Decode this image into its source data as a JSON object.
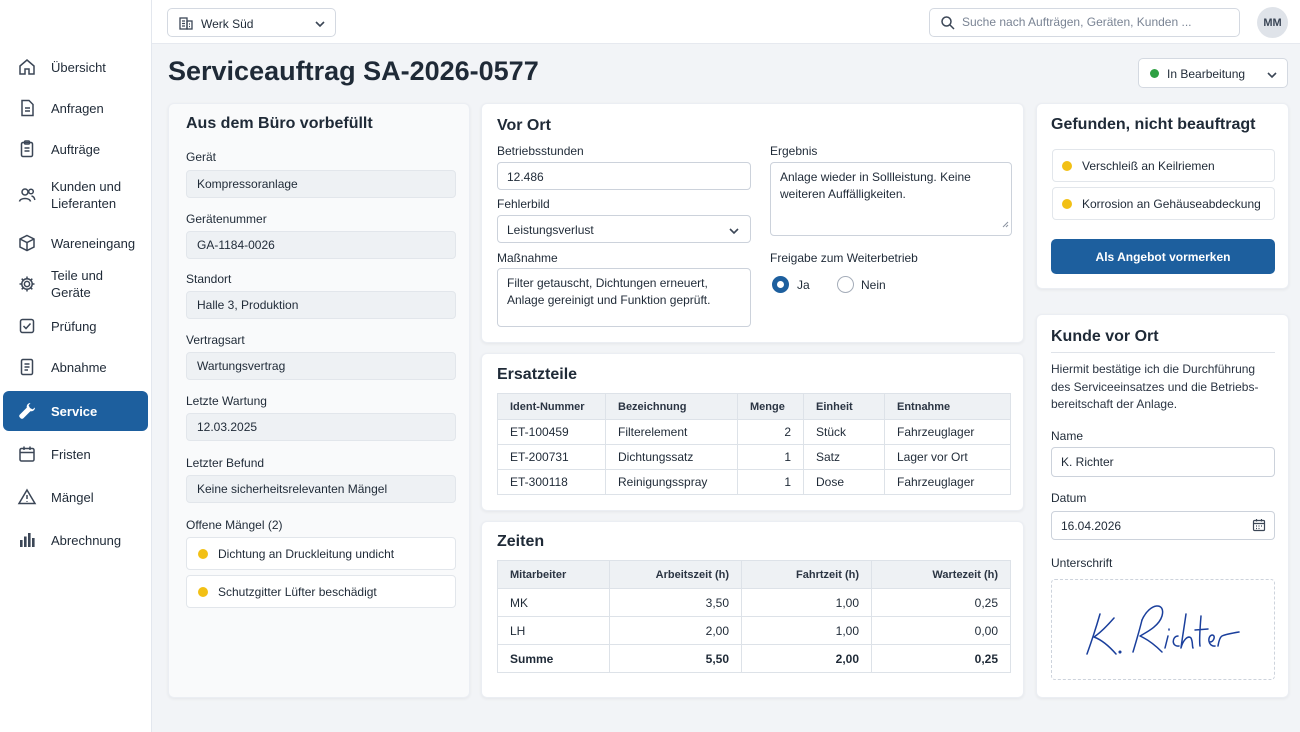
{
  "nav": {
    "items": [
      {
        "label": "Übersicht",
        "icon": "home-icon"
      },
      {
        "label": "Anfragen",
        "icon": "document-icon"
      },
      {
        "label": "Aufträge",
        "icon": "clipboard-icon"
      },
      {
        "label": "Kunden und Lieferanten",
        "icon": "users-icon"
      },
      {
        "label": "Wareneingang",
        "icon": "box-icon"
      },
      {
        "label": "Teile und Geräte",
        "icon": "gear-icon"
      },
      {
        "label": "Prüfung",
        "icon": "checkbox-icon"
      },
      {
        "label": "Abnahme",
        "icon": "document-list-icon"
      },
      {
        "label": "Service",
        "icon": "wrench-icon",
        "active": true
      },
      {
        "label": "Fristen",
        "icon": "calendar-icon"
      },
      {
        "label": "Mängel",
        "icon": "warning-icon"
      },
      {
        "label": "Abrechnung",
        "icon": "bar-chart-icon"
      }
    ]
  },
  "topbar": {
    "site": "Werk Süd",
    "search_placeholder": "Suche nach Aufträgen, Geräten, Kunden ...",
    "avatar": "MM"
  },
  "page": {
    "title": "Serviceauftrag SA-2026-0577",
    "status": "In Bearbeitung",
    "status_color": "#2ea043"
  },
  "office": {
    "title": "Aus dem Büro vorbefüllt",
    "fields": [
      {
        "label": "Gerät",
        "value": "Kompressoranlage"
      },
      {
        "label": "Gerätenummer",
        "value": "GA-1184-0026"
      },
      {
        "label": "Standort",
        "value": "Halle 3, Produktion"
      },
      {
        "label": "Vertragsart",
        "value": "Wartungsvertrag"
      },
      {
        "label": "Letzte Wartung",
        "value": "12.03.2025"
      },
      {
        "label": "Letzter Befund",
        "value": "Keine sicherheitsrelevanten Mängel"
      }
    ],
    "open_defects_label": "Offene Mängel (2)",
    "open_defects": [
      "Dichtung an Druckleitung undicht",
      "Schutzgitter Lüfter beschädigt"
    ]
  },
  "onsite": {
    "title": "Vor Ort",
    "hours_label": "Betriebsstunden",
    "hours_value": "12.486",
    "fault_label": "Fehlerbild",
    "fault_value": "Leistungsverlust",
    "measure_label": "Maßnahme",
    "measure_value": "Filter getauscht, Dichtungen erneuert, Anlage gereinigt und Funktion geprüft.",
    "result_label": "Ergebnis",
    "result_value": "Anlage wieder in Sollleistung. Keine weiteren Auffälligkeiten.",
    "release_label": "Freigabe zum Weiterbetrieb",
    "release_yes": "Ja",
    "release_no": "Nein"
  },
  "parts": {
    "title": "Ersatzteile",
    "headers": [
      "Ident-Nummer",
      "Bezeichnung",
      "Menge",
      "Einheit",
      "Entnahme"
    ],
    "rows": [
      [
        "ET-100459",
        "Filterelement",
        "2",
        "Stück",
        "Fahrzeuglager"
      ],
      [
        "ET-200731",
        "Dichtungssatz",
        "1",
        "Satz",
        "Lager vor Ort"
      ],
      [
        "ET-300118",
        "Reinigungsspray",
        "1",
        "Dose",
        "Fahrzeuglager"
      ]
    ]
  },
  "times": {
    "title": "Zeiten",
    "headers": [
      "Mitarbeiter",
      "Arbeitszeit (h)",
      "Fahrtzeit (h)",
      "Wartezeit (h)"
    ],
    "rows": [
      [
        "MK",
        "3,50",
        "1,00",
        "0,25"
      ],
      [
        "LH",
        "2,00",
        "1,00",
        "0,00"
      ]
    ],
    "sum": [
      "Summe",
      "5,50",
      "2,00",
      "0,25"
    ]
  },
  "found": {
    "title": "Gefunden, nicht beauftragt",
    "items": [
      "Verschleiß an Keilriemen",
      "Korrosion an Gehäuseabdeckung"
    ],
    "button": "Als Angebot vormerken"
  },
  "customer": {
    "title": "Kunde vor Ort",
    "confirmation": "Hiermit bestätige ich die Durchführung des Serviceeinsatzes und die Betriebs-bereitschaft der Anlage.",
    "name_label": "Name",
    "name_value": "K. Richter",
    "date_label": "Datum",
    "date_value": "16.04.2026",
    "signature_label": "Unterschrift",
    "signature_text": "K. Richter"
  },
  "colors": {
    "accent": "#1d5f9e",
    "warning_dot": "#f2c015",
    "status_dot": "#2ea043"
  }
}
